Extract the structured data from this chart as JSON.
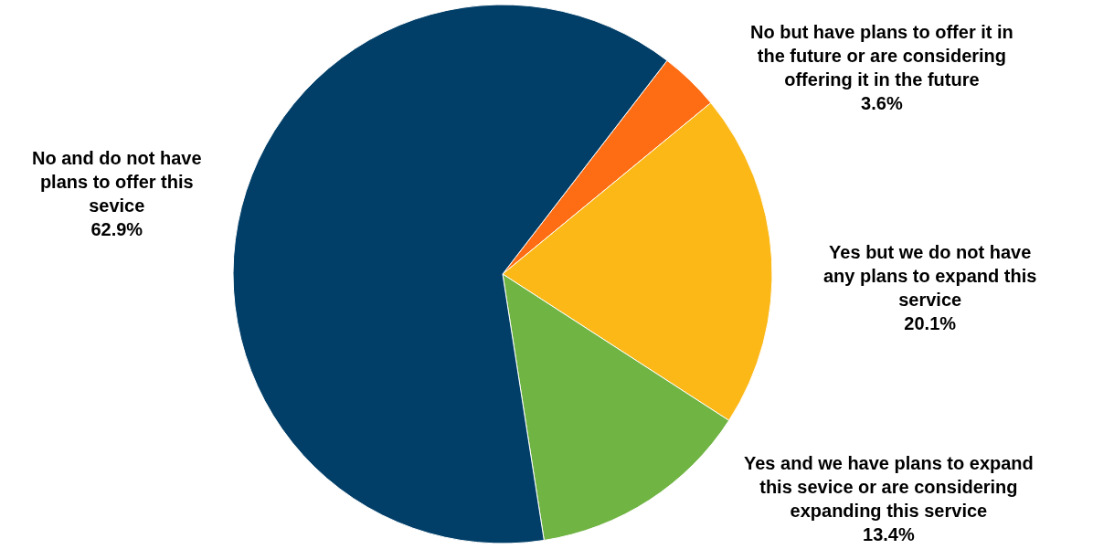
{
  "chart_data": {
    "type": "pie",
    "categories": [
      "No but have plans to offer it in the future or are considering offering it in the future",
      "Yes but we do not have any plans to expand this service",
      "Yes and we have plans to expand this sevice or are considering expanding this service",
      "No and do not have plans to offer this sevice"
    ],
    "values": [
      3.6,
      20.1,
      13.4,
      62.9
    ],
    "value_labels": [
      "3.6%",
      "20.1%",
      "13.4%",
      "62.9%"
    ],
    "colors": [
      "#fe6d14",
      "#fbb817",
      "#70b443",
      "#023f68"
    ],
    "legend": false
  }
}
